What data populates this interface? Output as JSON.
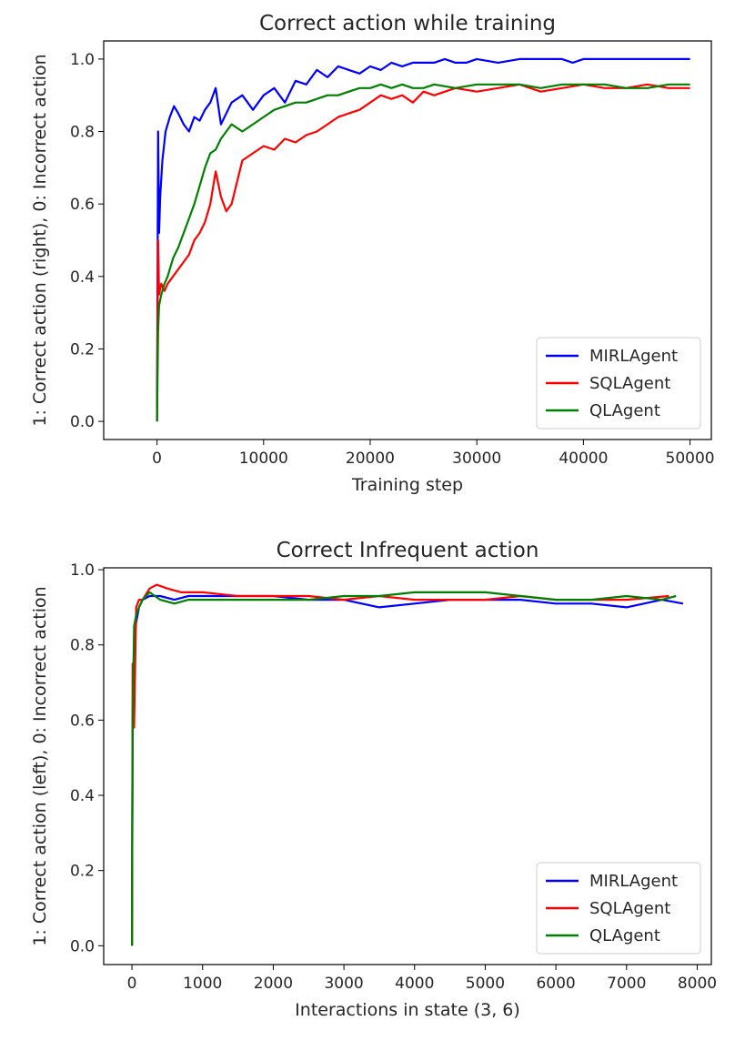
{
  "chart_data": [
    {
      "type": "line",
      "title": "Correct action while training",
      "xlabel": "Training step",
      "ylabel": "1: Correct action (right), 0: Incorrect action",
      "xlim": [
        -5000,
        52000
      ],
      "ylim": [
        -0.05,
        1.05
      ],
      "xticks": [
        0,
        10000,
        20000,
        30000,
        40000,
        50000
      ],
      "xtick_labels": [
        "0",
        "10000",
        "20000",
        "30000",
        "40000",
        "50000"
      ],
      "yticks": [
        0.0,
        0.2,
        0.4,
        0.6,
        0.8,
        1.0
      ],
      "ytick_labels": [
        "0.0",
        "0.2",
        "0.4",
        "0.6",
        "0.8",
        "1.0"
      ],
      "grid": false,
      "legend_position": "lower-right",
      "series": [
        {
          "name": "MIRLAgent",
          "color": "#0000ff",
          "x": [
            0,
            100,
            200,
            300,
            500,
            800,
            1200,
            1600,
            2000,
            2500,
            3000,
            3500,
            4000,
            4500,
            5000,
            5500,
            6000,
            7000,
            8000,
            9000,
            10000,
            11000,
            12000,
            13000,
            14000,
            15000,
            16000,
            17000,
            18000,
            19000,
            20000,
            21000,
            22000,
            23000,
            24000,
            25000,
            26000,
            27000,
            28000,
            29000,
            30000,
            32000,
            34000,
            36000,
            38000,
            39000,
            40000,
            42000,
            44000,
            46000,
            48000,
            50000
          ],
          "y": [
            0.0,
            0.8,
            0.52,
            0.62,
            0.72,
            0.8,
            0.84,
            0.87,
            0.85,
            0.82,
            0.8,
            0.84,
            0.83,
            0.86,
            0.88,
            0.92,
            0.82,
            0.88,
            0.9,
            0.86,
            0.9,
            0.92,
            0.88,
            0.94,
            0.93,
            0.97,
            0.95,
            0.98,
            0.97,
            0.96,
            0.98,
            0.97,
            0.99,
            0.98,
            0.99,
            0.99,
            0.99,
            1.0,
            0.99,
            0.99,
            1.0,
            0.99,
            1.0,
            1.0,
            1.0,
            0.99,
            1.0,
            1.0,
            1.0,
            1.0,
            1.0,
            1.0
          ]
        },
        {
          "name": "SQLAgent",
          "color": "#ff0000",
          "x": [
            0,
            100,
            200,
            400,
            700,
            1000,
            1500,
            2000,
            2500,
            3000,
            3500,
            4000,
            4500,
            5000,
            5500,
            6000,
            6500,
            7000,
            7500,
            8000,
            9000,
            10000,
            11000,
            12000,
            13000,
            14000,
            15000,
            16000,
            17000,
            18000,
            19000,
            20000,
            21000,
            22000,
            23000,
            24000,
            25000,
            26000,
            28000,
            30000,
            32000,
            34000,
            36000,
            38000,
            40000,
            42000,
            44000,
            46000,
            48000,
            50000
          ],
          "y": [
            0.0,
            0.5,
            0.35,
            0.38,
            0.36,
            0.38,
            0.4,
            0.42,
            0.44,
            0.46,
            0.5,
            0.52,
            0.55,
            0.6,
            0.69,
            0.62,
            0.58,
            0.6,
            0.66,
            0.72,
            0.74,
            0.76,
            0.75,
            0.78,
            0.77,
            0.79,
            0.8,
            0.82,
            0.84,
            0.85,
            0.86,
            0.88,
            0.9,
            0.89,
            0.9,
            0.88,
            0.91,
            0.9,
            0.92,
            0.91,
            0.92,
            0.93,
            0.91,
            0.92,
            0.93,
            0.92,
            0.92,
            0.93,
            0.92,
            0.92
          ]
        },
        {
          "name": "QLAgent",
          "color": "#008000",
          "x": [
            0,
            100,
            200,
            400,
            700,
            1000,
            1500,
            2000,
            2500,
            3000,
            3500,
            4000,
            4500,
            5000,
            5500,
            6000,
            6500,
            7000,
            8000,
            9000,
            10000,
            11000,
            12000,
            13000,
            14000,
            15000,
            16000,
            17000,
            18000,
            19000,
            20000,
            21000,
            22000,
            23000,
            24000,
            25000,
            26000,
            28000,
            30000,
            32000,
            34000,
            36000,
            38000,
            40000,
            42000,
            44000,
            46000,
            48000,
            50000
          ],
          "y": [
            0.0,
            0.25,
            0.32,
            0.35,
            0.38,
            0.4,
            0.45,
            0.48,
            0.52,
            0.56,
            0.6,
            0.65,
            0.7,
            0.74,
            0.75,
            0.78,
            0.8,
            0.82,
            0.8,
            0.82,
            0.84,
            0.86,
            0.87,
            0.88,
            0.88,
            0.89,
            0.9,
            0.9,
            0.91,
            0.92,
            0.92,
            0.93,
            0.92,
            0.93,
            0.92,
            0.92,
            0.93,
            0.92,
            0.93,
            0.93,
            0.93,
            0.92,
            0.93,
            0.93,
            0.93,
            0.92,
            0.92,
            0.93,
            0.93
          ]
        }
      ]
    },
    {
      "type": "line",
      "title": "Correct Infrequent action",
      "xlabel": "Interactions in state (3, 6)",
      "ylabel": "1: Correct action (left), 0: Incorrect action",
      "xlim": [
        -400,
        8200
      ],
      "ylim": [
        -0.05,
        1.005
      ],
      "xticks": [
        0,
        1000,
        2000,
        3000,
        4000,
        5000,
        6000,
        7000,
        8000
      ],
      "xtick_labels": [
        "0",
        "1000",
        "2000",
        "3000",
        "4000",
        "5000",
        "6000",
        "7000",
        "8000"
      ],
      "yticks": [
        0.0,
        0.2,
        0.4,
        0.6,
        0.8,
        1.0
      ],
      "ytick_labels": [
        "0.0",
        "0.2",
        "0.4",
        "0.6",
        "0.8",
        "1.0"
      ],
      "grid": false,
      "legend_position": "lower-right",
      "series": [
        {
          "name": "MIRLAgent",
          "color": "#0000ff",
          "x": [
            0,
            10,
            30,
            60,
            100,
            150,
            250,
            400,
            600,
            800,
            1000,
            1500,
            2000,
            2500,
            3000,
            3500,
            4000,
            4500,
            5000,
            5500,
            6000,
            6500,
            7000,
            7500,
            7800
          ],
          "y": [
            0.0,
            0.6,
            0.8,
            0.86,
            0.9,
            0.92,
            0.93,
            0.93,
            0.92,
            0.93,
            0.93,
            0.93,
            0.93,
            0.92,
            0.92,
            0.9,
            0.91,
            0.92,
            0.92,
            0.92,
            0.91,
            0.91,
            0.9,
            0.92,
            0.91
          ]
        },
        {
          "name": "SQLAgent",
          "color": "#ff0000",
          "x": [
            0,
            10,
            30,
            60,
            100,
            150,
            250,
            350,
            500,
            700,
            1000,
            1500,
            2000,
            2500,
            3000,
            3500,
            4000,
            4500,
            5000,
            5500,
            6000,
            6500,
            7000,
            7600
          ],
          "y": [
            0.0,
            0.75,
            0.58,
            0.9,
            0.92,
            0.92,
            0.95,
            0.96,
            0.95,
            0.94,
            0.94,
            0.93,
            0.93,
            0.93,
            0.92,
            0.93,
            0.92,
            0.92,
            0.92,
            0.93,
            0.92,
            0.92,
            0.92,
            0.93
          ]
        },
        {
          "name": "QLAgent",
          "color": "#008000",
          "x": [
            0,
            10,
            30,
            60,
            100,
            150,
            250,
            400,
            600,
            800,
            1000,
            1500,
            2000,
            2500,
            3000,
            3500,
            4000,
            4500,
            5000,
            5500,
            6000,
            6500,
            7000,
            7500,
            7700
          ],
          "y": [
            0.0,
            0.6,
            0.85,
            0.88,
            0.9,
            0.92,
            0.94,
            0.92,
            0.91,
            0.92,
            0.92,
            0.92,
            0.92,
            0.92,
            0.93,
            0.93,
            0.94,
            0.94,
            0.94,
            0.93,
            0.92,
            0.92,
            0.93,
            0.92,
            0.93
          ]
        }
      ]
    }
  ]
}
